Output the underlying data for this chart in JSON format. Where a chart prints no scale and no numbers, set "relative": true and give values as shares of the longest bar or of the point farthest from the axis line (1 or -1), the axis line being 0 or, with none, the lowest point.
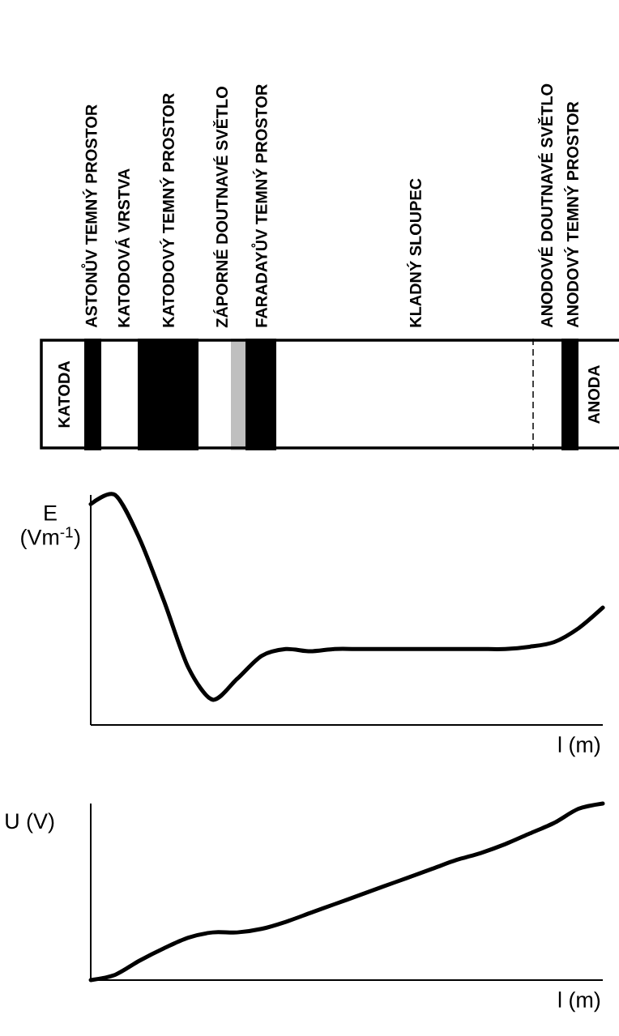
{
  "chart_data": [
    {
      "type": "other",
      "annotations": [
        "ASTONŮV TEMNÝ PROSTOR",
        "KATODOVÁ VRSTVA",
        "KATODOVÝ TEMNÝ PROSTOR",
        "ZÁPORNÉ DOUTNAVÉ SVĚTLO",
        "FARADAYŮV TEMNÝ PROSTOR",
        "KLADNÝ SLOUPEC",
        "ANODOVÉ DOUTNAVÉ SVĚTLO",
        "ANODOVÝ TEMNÝ PROSTOR",
        "KATODA",
        "ANODA"
      ]
    },
    {
      "type": "line",
      "ylabel": "E (Vm$^{-1}$)",
      "xlabel": "l (m)",
      "relative": true,
      "categories": [
        null,
        null,
        null,
        null,
        null,
        null,
        null,
        null,
        null,
        null,
        null,
        null,
        null,
        null,
        null,
        null,
        null,
        null,
        null,
        null,
        null,
        null
      ],
      "series": [
        {
          "color": "#000000",
          "values": [
            0.96,
            1.0,
            0.81,
            0.54,
            0.25,
            0.11,
            0.2,
            0.3,
            0.33,
            0.32,
            0.33,
            0.33,
            0.33,
            0.33,
            0.33,
            0.33,
            0.33,
            0.33,
            0.34,
            0.36,
            0.42,
            0.51
          ]
        }
      ]
    },
    {
      "type": "line",
      "ylabel": "U (V)",
      "xlabel": "l (m)",
      "relative": true,
      "categories": [
        null,
        null,
        null,
        null,
        null,
        null,
        null,
        null,
        null,
        null,
        null,
        null,
        null,
        null,
        null,
        null,
        null,
        null,
        null,
        null,
        null,
        null
      ],
      "series": [
        {
          "color": "#000000",
          "values": [
            0,
            0.03,
            0.11,
            0.18,
            0.24,
            0.27,
            0.27,
            0.29,
            0.33,
            0.38,
            0.43,
            0.48,
            0.53,
            0.58,
            0.63,
            0.68,
            0.72,
            0.77,
            0.83,
            0.89,
            0.97,
            1.0
          ]
        }
      ]
    }
  ]
}
